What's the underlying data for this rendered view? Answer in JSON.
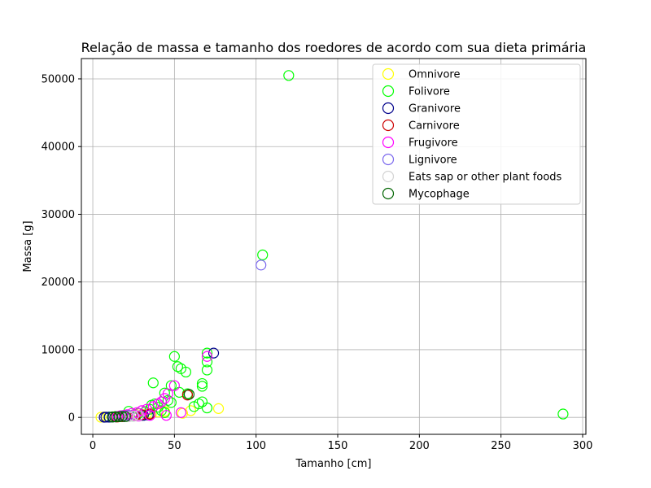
{
  "chart_data": {
    "type": "scatter",
    "title": "Relação de massa e tamanho dos roedores de acordo com sua dieta primária",
    "xlabel": "Tamanho [cm]",
    "ylabel": "Massa [g]",
    "xlim": [
      -7,
      302
    ],
    "ylim": [
      -2500,
      53000
    ],
    "xticks": [
      0,
      50,
      100,
      150,
      200,
      250,
      300
    ],
    "yticks": [
      0,
      10000,
      20000,
      30000,
      40000,
      50000
    ],
    "grid": true,
    "legend_position": "top-right",
    "marker": "hollow-circle",
    "series": [
      {
        "name": "Omnivore",
        "color": "#ffff00",
        "points": [
          [
            5,
            30
          ],
          [
            7,
            60
          ],
          [
            9,
            40
          ],
          [
            12,
            80
          ],
          [
            15,
            120
          ],
          [
            18,
            200
          ],
          [
            21,
            300
          ],
          [
            24,
            250
          ],
          [
            27,
            400
          ],
          [
            30,
            350
          ],
          [
            33,
            500
          ],
          [
            36,
            600
          ],
          [
            40,
            800
          ],
          [
            44,
            900
          ],
          [
            55,
            600
          ],
          [
            60,
            1000
          ],
          [
            77,
            1300
          ]
        ]
      },
      {
        "name": " Folivore",
        "color": "#00ff00",
        "points": [
          [
            120,
            50500
          ],
          [
            104,
            24000
          ],
          [
            288,
            500
          ],
          [
            70,
            9500
          ],
          [
            50,
            9000
          ],
          [
            52,
            7500
          ],
          [
            54,
            7200
          ],
          [
            57,
            6700
          ],
          [
            70,
            7000
          ],
          [
            67,
            5000
          ],
          [
            67,
            4600
          ],
          [
            37,
            5100
          ],
          [
            48,
            4700
          ],
          [
            70,
            8200
          ],
          [
            58,
            3500
          ],
          [
            44,
            3600
          ],
          [
            53,
            3700
          ],
          [
            46,
            2500
          ],
          [
            48,
            2200
          ],
          [
            36,
            1800
          ],
          [
            38,
            2000
          ],
          [
            40,
            1500
          ],
          [
            42,
            1000
          ],
          [
            62,
            1600
          ],
          [
            65,
            2000
          ],
          [
            67,
            2300
          ],
          [
            70,
            1400
          ],
          [
            32,
            800
          ],
          [
            28,
            600
          ],
          [
            25,
            400
          ],
          [
            22,
            900
          ],
          [
            35,
            1200
          ],
          [
            44,
            700
          ],
          [
            30,
            300
          ],
          [
            20,
            200
          ],
          [
            17,
            100
          ],
          [
            14,
            150
          ],
          [
            10,
            50
          ],
          [
            12,
            80
          ],
          [
            24,
            200
          ]
        ]
      },
      {
        "name": " Granivore",
        "color": "#00008b",
        "points": [
          [
            74,
            9500
          ],
          [
            7,
            20
          ],
          [
            8,
            40
          ],
          [
            10,
            30
          ],
          [
            12,
            60
          ],
          [
            14,
            80
          ],
          [
            16,
            100
          ],
          [
            19,
            120
          ],
          [
            22,
            150
          ],
          [
            25,
            200
          ],
          [
            28,
            250
          ],
          [
            31,
            300
          ],
          [
            34,
            350
          ]
        ]
      },
      {
        "name": "Carnivore",
        "color": "#cc0000",
        "points": [
          [
            15,
            50
          ],
          [
            18,
            100
          ],
          [
            22,
            150
          ],
          [
            26,
            250
          ],
          [
            30,
            400
          ],
          [
            35,
            500
          ],
          [
            58,
            3300
          ]
        ]
      },
      {
        "name": " Frugivore",
        "color": "#ff00ff",
        "points": [
          [
            70,
            9000
          ],
          [
            50,
            4700
          ],
          [
            46,
            3500
          ],
          [
            44,
            2800
          ],
          [
            40,
            2000
          ],
          [
            42,
            2300
          ],
          [
            37,
            1600
          ],
          [
            33,
            1200
          ],
          [
            30,
            1000
          ],
          [
            27,
            700
          ],
          [
            24,
            600
          ],
          [
            21,
            400
          ],
          [
            19,
            300
          ],
          [
            17,
            250
          ],
          [
            15,
            150
          ],
          [
            54,
            700
          ],
          [
            45,
            300
          ],
          [
            28,
            200
          ],
          [
            25,
            350
          ],
          [
            22,
            250
          ],
          [
            35,
            300
          ]
        ]
      },
      {
        "name": " Lignivore",
        "color": "#7b68ee",
        "points": [
          [
            103,
            22500
          ],
          [
            18,
            200
          ],
          [
            20,
            150
          ],
          [
            22,
            300
          ]
        ]
      },
      {
        "name": " Eats sap or other plant foods",
        "color": "#d3d3d3",
        "points": [
          [
            22,
            100
          ],
          [
            25,
            200
          ],
          [
            28,
            300
          ]
        ]
      },
      {
        "name": "Mycophage",
        "color": "#006400",
        "points": [
          [
            59,
            3400
          ],
          [
            12,
            50
          ],
          [
            14,
            80
          ],
          [
            16,
            100
          ],
          [
            18,
            150
          ],
          [
            20,
            120
          ]
        ]
      }
    ]
  }
}
